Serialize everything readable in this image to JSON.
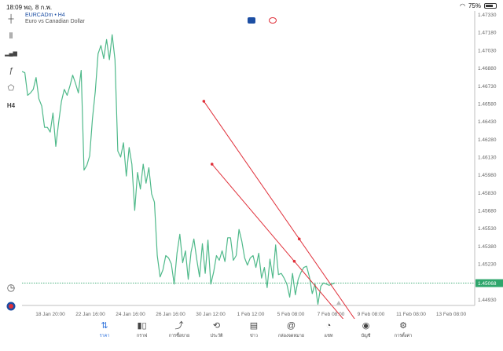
{
  "status": {
    "time": "18:09",
    "date": "พฤ. 8 ก.พ.",
    "battery": "75%",
    "battery_level": 0.75
  },
  "symbol": {
    "title": "EURCADm • H4",
    "description": "Euro vs Canadian Dollar"
  },
  "timeframe": "H4",
  "current_price": "1.45068",
  "colors": {
    "line": "#4fb98a",
    "trendline": "#e0303a",
    "price_tag": "#2fa66c",
    "accent": "#2a6fdb"
  },
  "chart_data": {
    "type": "line",
    "y_ticks": [
      "1.47330",
      "1.47180",
      "1.47030",
      "1.46880",
      "1.46730",
      "1.46580",
      "1.46430",
      "1.46280",
      "1.46130",
      "1.45980",
      "1.45830",
      "1.45680",
      "1.45530",
      "1.45380",
      "1.45230",
      "1.45068",
      "1.44930"
    ],
    "ylim": [
      1.4488,
      1.4736
    ],
    "x_ticks": [
      "18 Jan 20:00",
      "22 Jan 16:00",
      "24 Jan 16:00",
      "26 Jan 16:00",
      "30 Jan 12:00",
      "1 Feb 12:00",
      "5 Feb 08:00",
      "7 Feb 08:00",
      "9 Feb 08:00",
      "11 Feb 08:00",
      "13 Feb 08:00"
    ],
    "series": [
      {
        "values": [
          1.4685,
          1.4684,
          1.4665,
          1.4667,
          1.467,
          1.468,
          1.4662,
          1.4656,
          1.4638,
          1.4638,
          1.4634,
          1.465,
          1.4622,
          1.4642,
          1.466,
          1.467,
          1.4665,
          1.4673,
          1.4682,
          1.4675,
          1.4667,
          1.4686,
          1.4602,
          1.4606,
          1.4614,
          1.4645,
          1.4668,
          1.47,
          1.4707,
          1.4696,
          1.4712,
          1.4695,
          1.4716,
          1.4695,
          1.4618,
          1.4613,
          1.4625,
          1.4597,
          1.4621,
          1.4607,
          1.4568,
          1.46,
          1.4586,
          1.4607,
          1.4591,
          1.4604,
          1.4582,
          1.4575,
          1.453,
          1.4512,
          1.4518,
          1.453,
          1.4528,
          1.4523,
          1.4506,
          1.4532,
          1.4548,
          1.4524,
          1.4534,
          1.451,
          1.4533,
          1.4544,
          1.4527,
          1.4512,
          1.454,
          1.4515,
          1.4543,
          1.4506,
          1.4516,
          1.453,
          1.4526,
          1.4534,
          1.4525,
          1.4545,
          1.4545,
          1.4526,
          1.453,
          1.4552,
          1.4542,
          1.4528,
          1.4522,
          1.4528,
          1.453,
          1.452,
          1.4532,
          1.4511,
          1.452,
          1.4503,
          1.4527,
          1.4511,
          1.4539,
          1.4514,
          1.4515,
          1.4511,
          1.4506,
          1.4495,
          1.4515,
          1.4497,
          1.451,
          1.4516,
          1.452,
          1.4521,
          1.4512,
          1.4498,
          1.4506,
          1.4489,
          1.4504,
          1.4507,
          1.4506,
          1.4505,
          1.4506,
          1.4507
        ]
      }
    ],
    "trendlines": [
      {
        "x": [
          0.378,
          0.72
        ],
        "y": [
          1.466,
          1.446
        ],
        "points": [
          0.0,
          0.58
        ]
      },
      {
        "x": [
          0.395,
          0.69
        ],
        "y": [
          1.4607,
          1.4466
        ],
        "points": [
          0.0,
          0.58
        ]
      }
    ],
    "current_price": 1.45068,
    "grid": false
  },
  "nav": [
    {
      "label": "ราคา",
      "icon": "⇅",
      "active": true
    },
    {
      "label": "กราฟ",
      "icon": "▮▯",
      "active": false
    },
    {
      "label": "การซื้อขาย",
      "icon": "⤴",
      "active": false
    },
    {
      "label": "ประวัติ",
      "icon": "⟲",
      "active": false
    },
    {
      "label": "ข่าว",
      "icon": "▤",
      "active": false
    },
    {
      "label": "กล่องจดหมาย",
      "icon": "@",
      "active": false
    },
    {
      "label": "แชท",
      "icon": "◔",
      "active": false
    },
    {
      "label": "บัญชี",
      "icon": "◉",
      "active": false
    },
    {
      "label": "การตั้งค่า",
      "icon": "⚙",
      "active": false
    }
  ],
  "tools": [
    {
      "name": "crosshair-icon",
      "icon": "┼"
    },
    {
      "name": "candlestick-icon",
      "icon": "⫴"
    },
    {
      "name": "indicators-icon",
      "icon": "▂▄▆"
    },
    {
      "name": "function-icon",
      "icon": "ƒ"
    },
    {
      "name": "shapes-icon",
      "icon": "⬠"
    },
    {
      "name": "timeframe-icon",
      "icon": "H4"
    }
  ]
}
